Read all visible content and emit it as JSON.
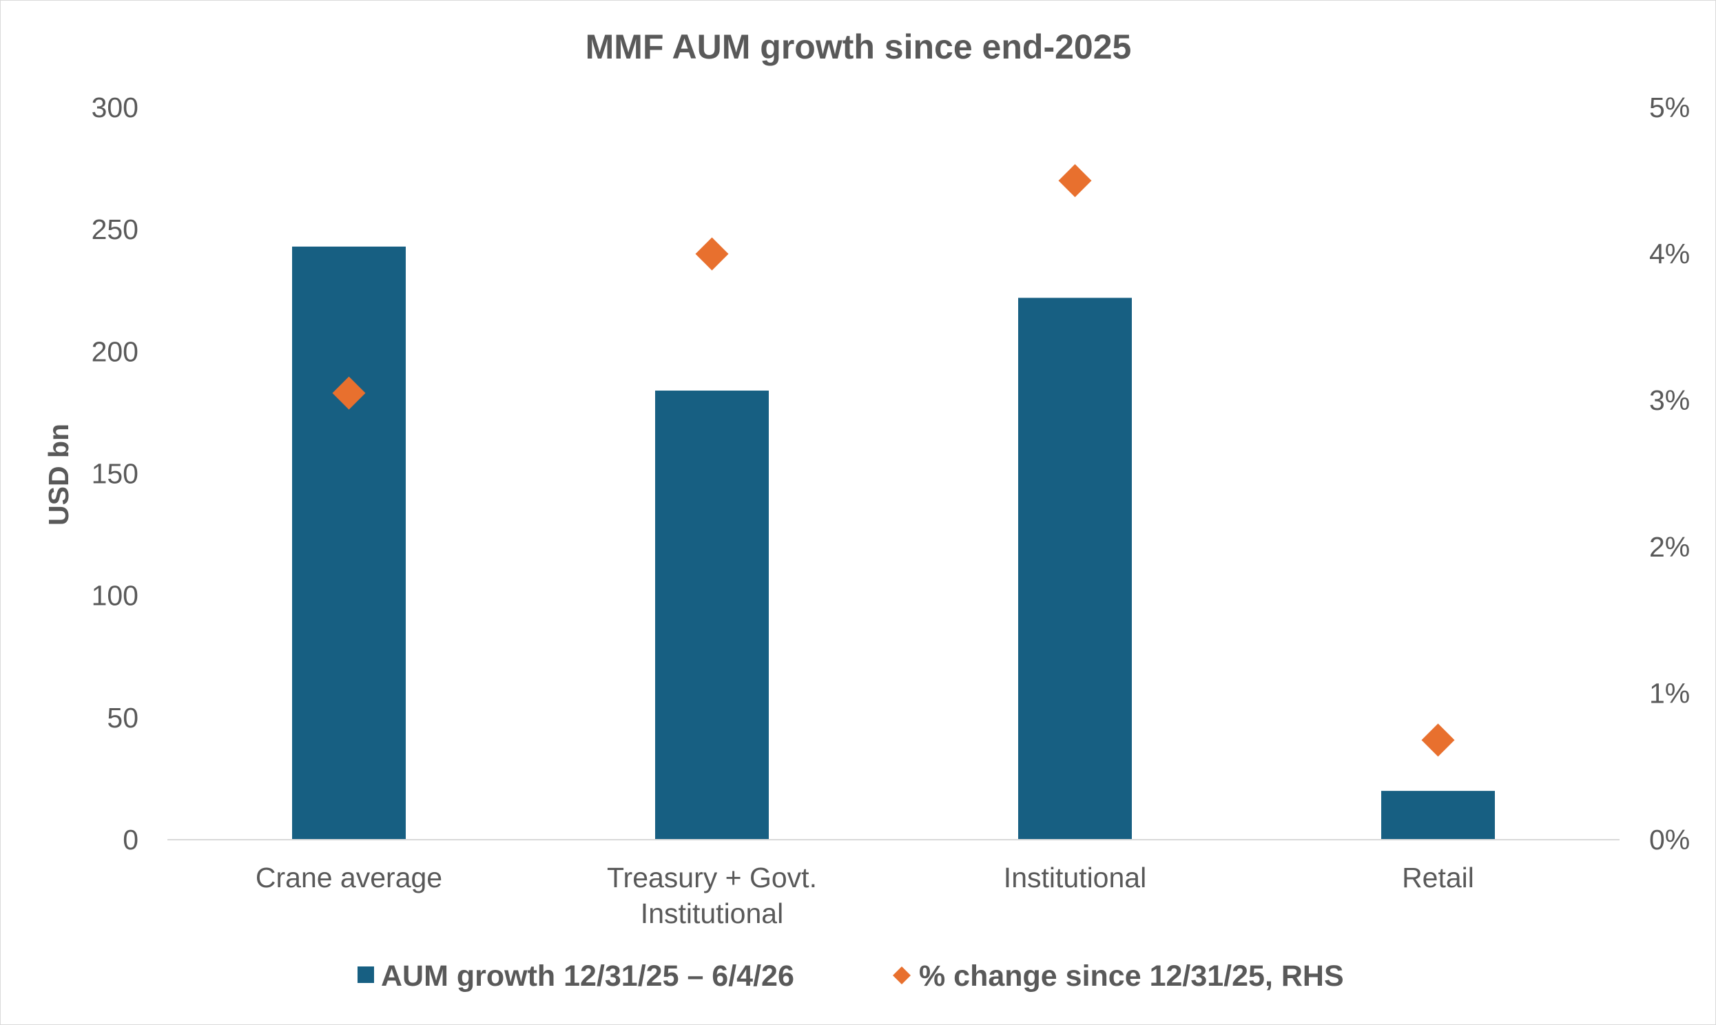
{
  "chart_data": {
    "type": "bar",
    "title": "MMF AUM growth since end-2025",
    "ylabel": "USD bn",
    "ylim": [
      0,
      300
    ],
    "yticks": [
      "0",
      "50",
      "100",
      "150",
      "200",
      "250",
      "300"
    ],
    "y2lim": [
      0,
      5
    ],
    "y2ticks": [
      "0%",
      "1%",
      "2%",
      "3%",
      "4%",
      "5%"
    ],
    "categories": [
      [
        "Crane average"
      ],
      [
        "Treasury + Govt.",
        "Institutional"
      ],
      [
        "Institutional"
      ],
      [
        "Retail"
      ]
    ],
    "series": [
      {
        "name": "AUM growth 12/31/25 – 6/4/26",
        "type": "bar",
        "axis": "left",
        "color": "#175f82",
        "values": [
          243,
          184,
          222,
          20
        ]
      },
      {
        "name": "% change since 12/31/25, RHS",
        "type": "scatter",
        "marker": "diamond",
        "axis": "right",
        "color": "#e8702e",
        "values": [
          3.05,
          4.0,
          4.5,
          0.68
        ]
      }
    ],
    "grid": false,
    "legend": "bottom"
  }
}
